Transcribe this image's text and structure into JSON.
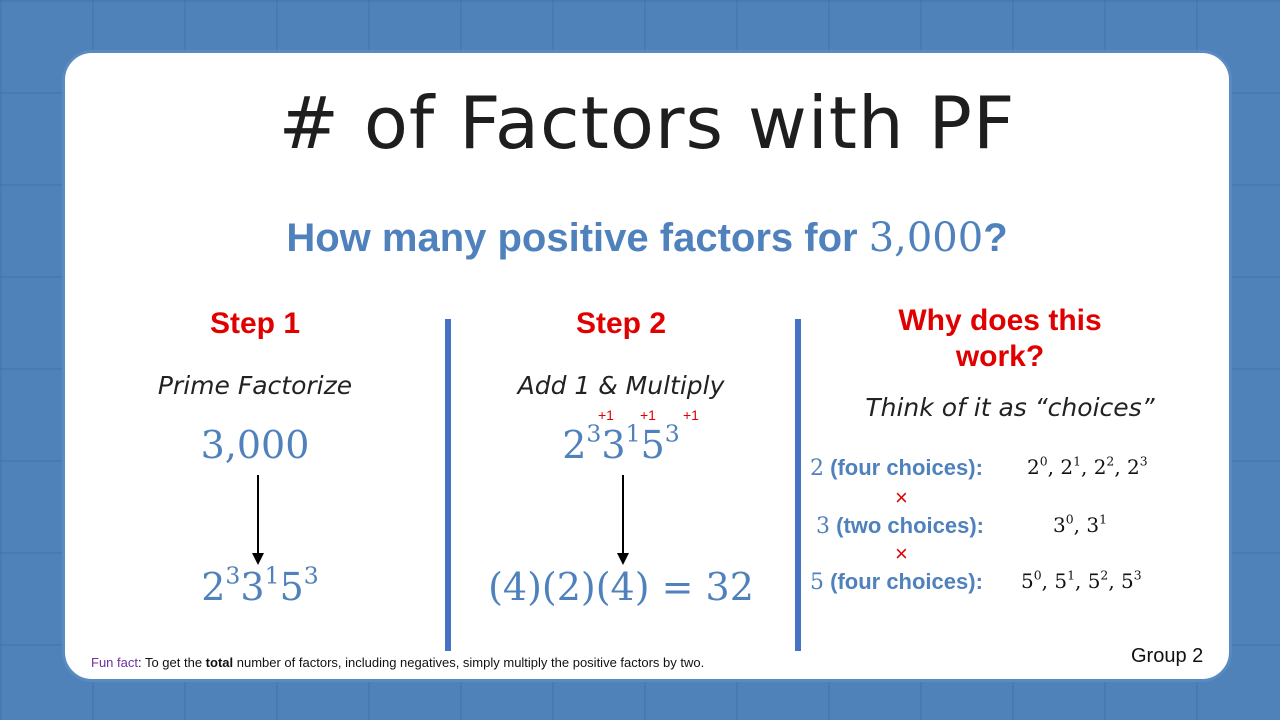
{
  "title": "# of Factors with PF",
  "question": {
    "prefix": "How many positive factors for ",
    "number": "3,000",
    "suffix": "?"
  },
  "step1": {
    "heading": "Step 1",
    "subtitle": "Prime Factorize",
    "number": "3,000",
    "bases": [
      "2",
      "3",
      "5"
    ],
    "exponents": [
      "3",
      "1",
      "3"
    ]
  },
  "step2": {
    "heading": "Step 2",
    "subtitle": "Add 1 & Multiply",
    "increments": [
      "+1",
      "+1",
      "+1"
    ],
    "bases": [
      "2",
      "3",
      "5"
    ],
    "exponents": [
      "3",
      "1",
      "3"
    ],
    "result": "(4)(2)(4) = 32"
  },
  "why": {
    "heading": "Why does this work?",
    "subtitle": "Think of it as “choices”",
    "times_symbol": "×",
    "rows": [
      {
        "prime": "2",
        "label": " (four choices):",
        "choices": [
          [
            "2",
            "0"
          ],
          [
            "2",
            "1"
          ],
          [
            "2",
            "2"
          ],
          [
            "2",
            "3"
          ]
        ]
      },
      {
        "prime": "3",
        "label": " (two choices):",
        "choices": [
          [
            "3",
            "0"
          ],
          [
            "3",
            "1"
          ]
        ]
      },
      {
        "prime": "5",
        "label": " (four choices):",
        "choices": [
          [
            "5",
            "0"
          ],
          [
            "5",
            "1"
          ],
          [
            "5",
            "2"
          ],
          [
            "5",
            "3"
          ]
        ]
      }
    ]
  },
  "footnote": {
    "fun_label": "Fun fact",
    "text_a": ": To get the ",
    "bold": "total",
    "text_b": " number of factors, including negatives, simply multiply the positive factors by two."
  },
  "group": "Group 2",
  "colors": {
    "background": "#4f82b8",
    "accent_blue": "#4f81bd",
    "heading_red": "#e00000",
    "divider": "#4472c4",
    "fun_purple": "#7030a0"
  }
}
